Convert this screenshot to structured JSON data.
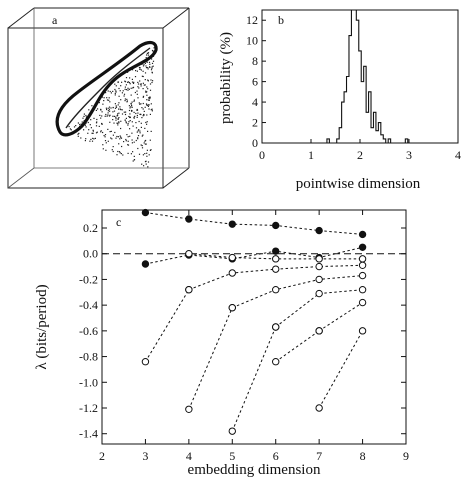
{
  "chart_data": [
    {
      "panel": "a",
      "type": "scatter",
      "label": "a"
    },
    {
      "panel": "b",
      "type": "bar",
      "label": "b",
      "xlabel": "pointwise dimension",
      "ylabel": "probability (%)",
      "xlim": [
        0,
        4
      ],
      "ylim": [
        0,
        13
      ],
      "xticks": [
        "0",
        "1",
        "2",
        "3",
        "4"
      ],
      "yticks": [
        "0",
        "2",
        "4",
        "6",
        "8",
        "10",
        "12"
      ],
      "histogram": {
        "bin_width": 0.05,
        "bins": [
          {
            "x": 1.35,
            "value": 0.4
          },
          {
            "x": 1.55,
            "value": 0.4
          },
          {
            "x": 1.6,
            "value": 1.5
          },
          {
            "x": 1.65,
            "value": 4.0
          },
          {
            "x": 1.7,
            "value": 5.0
          },
          {
            "x": 1.75,
            "value": 6.5
          },
          {
            "x": 1.8,
            "value": 10.5
          },
          {
            "x": 1.85,
            "value": 13.0
          },
          {
            "x": 1.9,
            "value": 13.0
          },
          {
            "x": 1.95,
            "value": 12.0
          },
          {
            "x": 2.0,
            "value": 9.0
          },
          {
            "x": 2.05,
            "value": 6.0
          },
          {
            "x": 2.1,
            "value": 7.5
          },
          {
            "x": 2.15,
            "value": 3.0
          },
          {
            "x": 2.2,
            "value": 5.0
          },
          {
            "x": 2.25,
            "value": 1.5
          },
          {
            "x": 2.3,
            "value": 3.0
          },
          {
            "x": 2.35,
            "value": 1.2
          },
          {
            "x": 2.4,
            "value": 2.0
          },
          {
            "x": 2.45,
            "value": 0.8
          },
          {
            "x": 2.5,
            "value": 0.4
          },
          {
            "x": 2.6,
            "value": 0.4
          },
          {
            "x": 2.95,
            "value": 0.4
          }
        ]
      }
    },
    {
      "panel": "c",
      "type": "line",
      "label": "c",
      "xlabel": "embedding dimension",
      "ylabel": "λ (bits/period)",
      "xlim": [
        2,
        9
      ],
      "ylim": [
        -1.48,
        0.34
      ],
      "xticks": [
        "2",
        "3",
        "4",
        "5",
        "6",
        "7",
        "8",
        "9"
      ],
      "yticks": [
        "0.2",
        "0.0",
        "-0.2",
        "-0.4",
        "-0.6",
        "-0.8",
        "-1.0",
        "-1.2",
        "-1.4"
      ],
      "reference_line": 0.0,
      "series": [
        {
          "marker": "filled",
          "x": [
            3,
            4,
            5,
            6,
            7,
            8
          ],
          "y": [
            0.32,
            0.27,
            0.23,
            0.22,
            0.18,
            0.15
          ]
        },
        {
          "marker": "filled",
          "x": [
            3,
            4,
            5,
            6,
            7,
            8
          ],
          "y": [
            -0.08,
            -0.01,
            -0.04,
            0.02,
            -0.03,
            0.05
          ]
        },
        {
          "marker": "open",
          "x": [
            4,
            5,
            6,
            7,
            8
          ],
          "y": [
            0.0,
            -0.03,
            -0.04,
            -0.04,
            -0.04
          ]
        },
        {
          "marker": "open",
          "x": [
            4,
            5,
            6,
            7,
            8
          ],
          "y": [
            -0.28,
            -0.15,
            -0.12,
            -0.1,
            -0.09
          ]
        },
        {
          "marker": "open",
          "x": [
            5,
            6,
            7,
            8
          ],
          "y": [
            -0.42,
            -0.28,
            -0.2,
            -0.17
          ]
        },
        {
          "marker": "open",
          "x": [
            3,
            4
          ],
          "y": [
            -0.84,
            -0.28
          ]
        },
        {
          "marker": "open",
          "x": [
            6,
            7,
            8
          ],
          "y": [
            -0.57,
            -0.31,
            -0.28
          ]
        },
        {
          "marker": "open",
          "x": [
            7,
            8
          ],
          "y": [
            -0.6,
            -0.38
          ]
        },
        {
          "marker": "open",
          "x": [
            4,
            5
          ],
          "y": [
            -1.21,
            -0.42
          ]
        },
        {
          "marker": "open",
          "x": [
            6,
            7
          ],
          "y": [
            -0.84,
            -0.6
          ]
        },
        {
          "marker": "open",
          "x": [
            5,
            6
          ],
          "y": [
            -1.38,
            -0.57
          ]
        },
        {
          "marker": "open",
          "x": [
            7,
            8
          ],
          "y": [
            -1.2,
            -0.6
          ]
        }
      ]
    }
  ]
}
